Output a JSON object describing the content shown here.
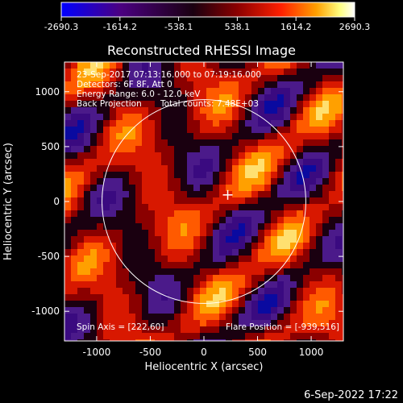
{
  "colorbar": {
    "ticks": [
      "-2690.3",
      "-1614.2",
      "-538.1",
      "538.1",
      "1614.2",
      "2690.3"
    ],
    "stops": [
      "#0000ff",
      "#4b0082",
      "#1a0010",
      "#8b0000",
      "#ff2000",
      "#ffa000",
      "#ffff80",
      "#ffffff"
    ]
  },
  "chart_data": {
    "type": "heatmap",
    "title": "Reconstructed RHESSI Image",
    "xlabel": "Heliocentric X (arcsec)",
    "ylabel": "Heliocentric Y (arcsec)",
    "xlim": [
      -1300,
      1300
    ],
    "ylim": [
      -1270,
      1270
    ],
    "xticks": [
      "-1000",
      "-500",
      "0",
      "500",
      "1000"
    ],
    "yticks": [
      "1000",
      "500",
      "0",
      "-500",
      "-1000"
    ],
    "color_range": [
      -2690.3,
      2690.3
    ],
    "annotations": {
      "time": "23-Sep-2017 07:13:16.000 to 07:19:16.000",
      "detectors": "Detectors: 6F 8F, Att 0",
      "energy": "Energy Range: 6.0 - 12.0 keV",
      "method": "Back Projection",
      "counts": "Total counts: 7.48E+03",
      "spin_axis": "Spin Axis = [222,60]",
      "flare_position": "Flare Position = [-939,516]"
    },
    "solar_limb_radius_arcsec": 950,
    "marker": {
      "x": 222,
      "y": 60
    }
  },
  "footer": {
    "date": "6-Sep-2022 17:22"
  }
}
